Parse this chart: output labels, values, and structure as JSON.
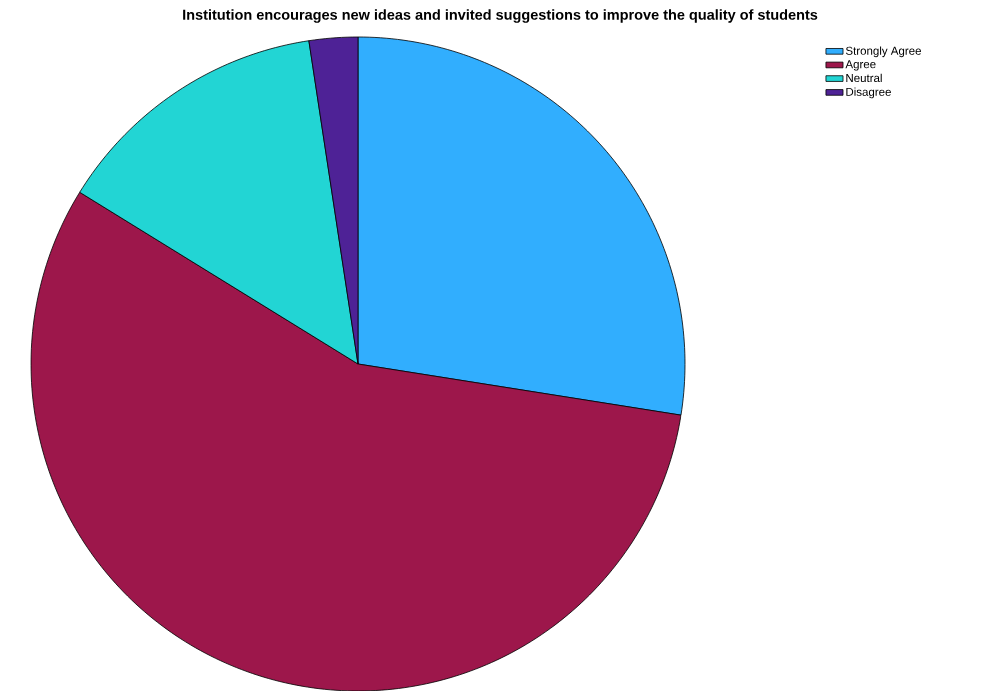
{
  "chart_data": {
    "type": "pie",
    "title": "Institution encourages new ideas and invited suggestions to improve the quality of students",
    "categories": [
      "Strongly Agree",
      "Agree",
      "Neutral",
      "Disagree"
    ],
    "values": [
      27.5,
      56.3,
      13.8,
      2.4
    ],
    "colors": [
      "#31aefe",
      "#9d174b",
      "#22d5d4",
      "#4e2296"
    ],
    "legend": "top right"
  }
}
